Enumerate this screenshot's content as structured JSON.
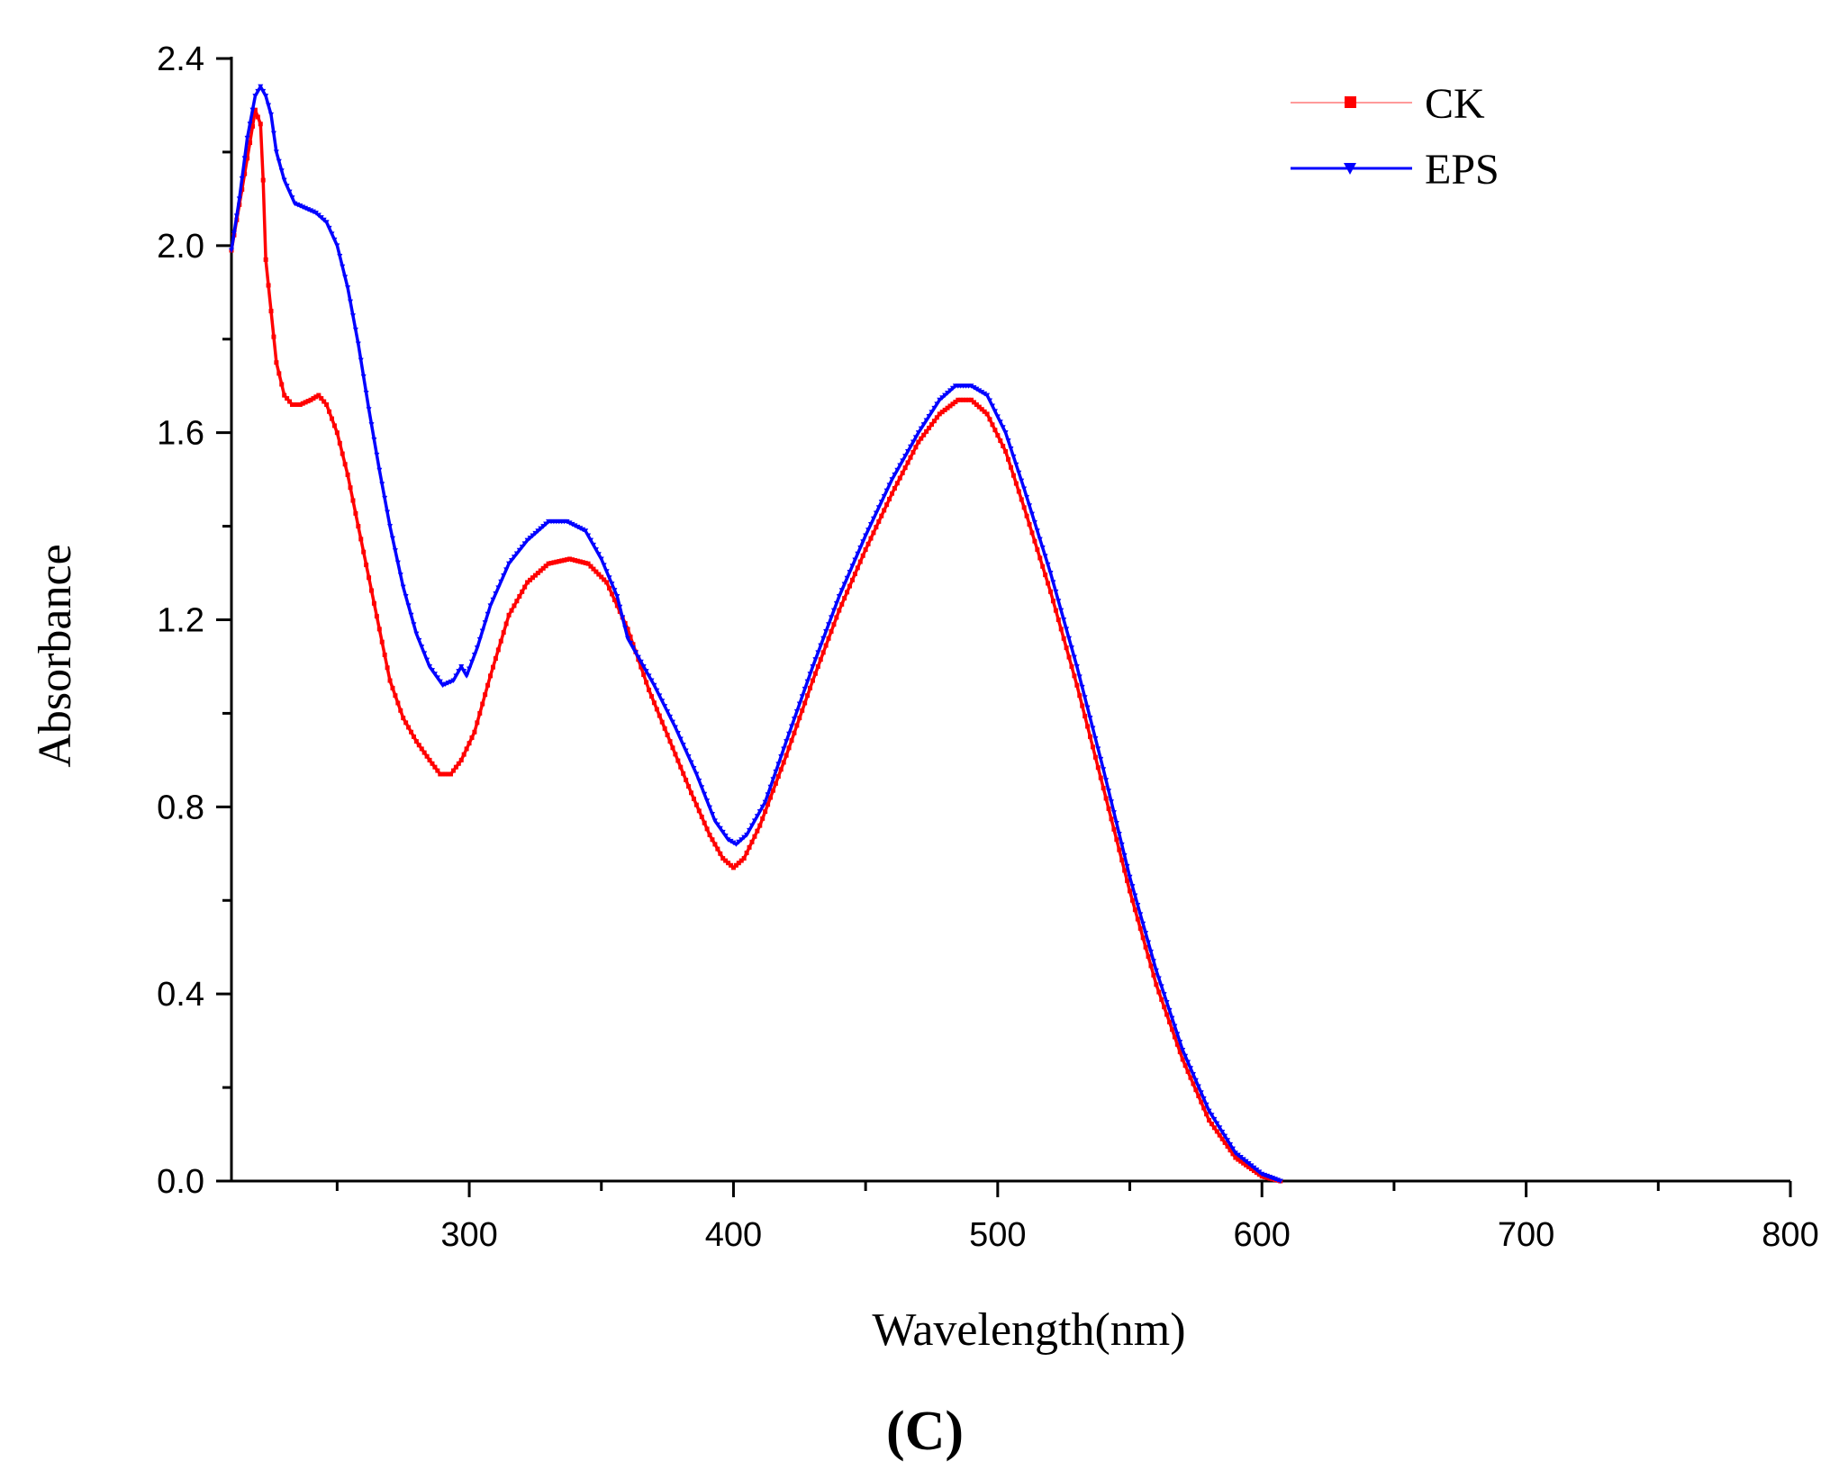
{
  "chart_data": {
    "type": "line",
    "title": "",
    "xlabel": "Wavelength(nm)",
    "ylabel": "Absorbance",
    "xlim": [
      210,
      800
    ],
    "ylim": [
      0.0,
      2.4
    ],
    "x_ticks": [
      300,
      400,
      500,
      600,
      700,
      800
    ],
    "x_tick_labels": [
      "300",
      "400",
      "500",
      "600",
      "700",
      "800"
    ],
    "x_minor_ticks": [
      250,
      350,
      450,
      550,
      650,
      750
    ],
    "y_ticks": [
      0.0,
      0.4,
      0.8,
      1.2,
      1.6,
      2.0,
      2.4
    ],
    "y_tick_labels": [
      "0.0",
      "0.4",
      "0.8",
      "1.2",
      "1.6",
      "2.0",
      "2.4"
    ],
    "y_minor_ticks": [
      0.2,
      0.6,
      1.0,
      1.4,
      1.8,
      2.2
    ],
    "grid": false,
    "legend_position": "top-right",
    "panel_label": "(C)",
    "series": [
      {
        "name": "CK",
        "color": "#ff0000",
        "marker": "square",
        "points": [
          [
            210,
            1.99
          ],
          [
            214,
            2.12
          ],
          [
            217,
            2.22
          ],
          [
            219,
            2.29
          ],
          [
            221,
            2.26
          ],
          [
            222,
            2.14
          ],
          [
            223,
            1.97
          ],
          [
            225,
            1.86
          ],
          [
            227,
            1.75
          ],
          [
            230,
            1.68
          ],
          [
            233,
            1.66
          ],
          [
            236,
            1.66
          ],
          [
            240,
            1.67
          ],
          [
            243,
            1.68
          ],
          [
            246,
            1.66
          ],
          [
            250,
            1.6
          ],
          [
            254,
            1.51
          ],
          [
            258,
            1.4
          ],
          [
            262,
            1.29
          ],
          [
            266,
            1.18
          ],
          [
            270,
            1.07
          ],
          [
            275,
            0.99
          ],
          [
            280,
            0.94
          ],
          [
            285,
            0.9
          ],
          [
            289,
            0.87
          ],
          [
            293,
            0.87
          ],
          [
            297,
            0.9
          ],
          [
            302,
            0.96
          ],
          [
            308,
            1.08
          ],
          [
            315,
            1.21
          ],
          [
            322,
            1.28
          ],
          [
            330,
            1.32
          ],
          [
            338,
            1.33
          ],
          [
            345,
            1.32
          ],
          [
            352,
            1.28
          ],
          [
            360,
            1.18
          ],
          [
            368,
            1.05
          ],
          [
            376,
            0.94
          ],
          [
            384,
            0.83
          ],
          [
            391,
            0.74
          ],
          [
            396,
            0.69
          ],
          [
            400,
            0.67
          ],
          [
            404,
            0.69
          ],
          [
            410,
            0.76
          ],
          [
            420,
            0.91
          ],
          [
            430,
            1.07
          ],
          [
            440,
            1.22
          ],
          [
            450,
            1.35
          ],
          [
            460,
            1.47
          ],
          [
            470,
            1.58
          ],
          [
            478,
            1.64
          ],
          [
            485,
            1.67
          ],
          [
            490,
            1.67
          ],
          [
            496,
            1.64
          ],
          [
            503,
            1.56
          ],
          [
            510,
            1.44
          ],
          [
            520,
            1.26
          ],
          [
            530,
            1.06
          ],
          [
            540,
            0.84
          ],
          [
            550,
            0.62
          ],
          [
            560,
            0.42
          ],
          [
            570,
            0.26
          ],
          [
            580,
            0.13
          ],
          [
            590,
            0.05
          ],
          [
            600,
            0.01
          ],
          [
            607,
            0.0
          ]
        ]
      },
      {
        "name": "EPS",
        "color": "#0000ff",
        "marker": "triangle-down",
        "points": [
          [
            210,
            1.99
          ],
          [
            213,
            2.1
          ],
          [
            216,
            2.23
          ],
          [
            219,
            2.32
          ],
          [
            221,
            2.34
          ],
          [
            223,
            2.32
          ],
          [
            225,
            2.28
          ],
          [
            227,
            2.2
          ],
          [
            230,
            2.14
          ],
          [
            234,
            2.09
          ],
          [
            238,
            2.08
          ],
          [
            242,
            2.07
          ],
          [
            246,
            2.05
          ],
          [
            250,
            2.0
          ],
          [
            254,
            1.91
          ],
          [
            258,
            1.79
          ],
          [
            262,
            1.65
          ],
          [
            266,
            1.52
          ],
          [
            270,
            1.4
          ],
          [
            275,
            1.27
          ],
          [
            280,
            1.17
          ],
          [
            285,
            1.1
          ],
          [
            290,
            1.06
          ],
          [
            294,
            1.07
          ],
          [
            297,
            1.1
          ],
          [
            299,
            1.08
          ],
          [
            303,
            1.14
          ],
          [
            308,
            1.23
          ],
          [
            315,
            1.32
          ],
          [
            322,
            1.37
          ],
          [
            330,
            1.41
          ],
          [
            337,
            1.41
          ],
          [
            344,
            1.39
          ],
          [
            350,
            1.33
          ],
          [
            356,
            1.25
          ],
          [
            360,
            1.16
          ],
          [
            364,
            1.12
          ],
          [
            370,
            1.06
          ],
          [
            378,
            0.97
          ],
          [
            386,
            0.87
          ],
          [
            393,
            0.77
          ],
          [
            398,
            0.73
          ],
          [
            401,
            0.72
          ],
          [
            405,
            0.74
          ],
          [
            412,
            0.81
          ],
          [
            420,
            0.94
          ],
          [
            430,
            1.1
          ],
          [
            440,
            1.25
          ],
          [
            450,
            1.38
          ],
          [
            460,
            1.5
          ],
          [
            470,
            1.6
          ],
          [
            478,
            1.67
          ],
          [
            484,
            1.7
          ],
          [
            490,
            1.7
          ],
          [
            496,
            1.68
          ],
          [
            503,
            1.6
          ],
          [
            510,
            1.48
          ],
          [
            520,
            1.3
          ],
          [
            530,
            1.1
          ],
          [
            540,
            0.88
          ],
          [
            550,
            0.65
          ],
          [
            560,
            0.45
          ],
          [
            570,
            0.28
          ],
          [
            580,
            0.15
          ],
          [
            590,
            0.06
          ],
          [
            600,
            0.015
          ],
          [
            607,
            0.0
          ]
        ]
      }
    ]
  }
}
